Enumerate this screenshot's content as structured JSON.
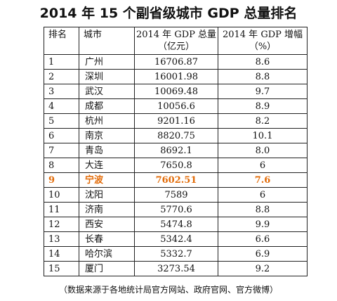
{
  "title": "2014 年 15 个副省级城市 GDP 总量排名",
  "headers": {
    "rank": "排名",
    "city": "城市",
    "gdp_line1": "2014 年 GDP 总量",
    "gdp_line2": "（亿元）",
    "growth_line1": "2014 年 GDP 增幅",
    "growth_line2": "（%）"
  },
  "highlight_color": "#e36c09",
  "rows": [
    {
      "rank": "1",
      "city": "广州",
      "gdp": "16706.87",
      "growth": "8.6"
    },
    {
      "rank": "2",
      "city": "深圳",
      "gdp": "16001.98",
      "growth": "8.8"
    },
    {
      "rank": "3",
      "city": "武汉",
      "gdp": "10069.48",
      "growth": "9.7"
    },
    {
      "rank": "4",
      "city": "成都",
      "gdp": "10056.6",
      "growth": "8.9"
    },
    {
      "rank": "5",
      "city": "杭州",
      "gdp": "9201.16",
      "growth": "8.2"
    },
    {
      "rank": "6",
      "city": "南京",
      "gdp": "8820.75",
      "growth": "10.1"
    },
    {
      "rank": "7",
      "city": "青岛",
      "gdp": "8692.1",
      "growth": "8.0"
    },
    {
      "rank": "8",
      "city": "大连",
      "gdp": "7650.8",
      "growth": "6"
    },
    {
      "rank": "9",
      "city": "宁波",
      "gdp": "7602.51",
      "growth": "7.6"
    },
    {
      "rank": "10",
      "city": "沈阳",
      "gdp": "7589",
      "growth": "6"
    },
    {
      "rank": "11",
      "city": "济南",
      "gdp": "5770.6",
      "growth": "8.8"
    },
    {
      "rank": "12",
      "city": "西安",
      "gdp": "5474.8",
      "growth": "9.9"
    },
    {
      "rank": "13",
      "city": "长春",
      "gdp": "5342.4",
      "growth": "6.6"
    },
    {
      "rank": "14",
      "city": "哈尔滨",
      "gdp": "5332.7",
      "growth": "6.9"
    },
    {
      "rank": "15",
      "city": "厦门",
      "gdp": "3273.54",
      "growth": "9.2"
    }
  ],
  "source": "（数据来源于各地统计局官方网站、政府官网、官方微博）"
}
